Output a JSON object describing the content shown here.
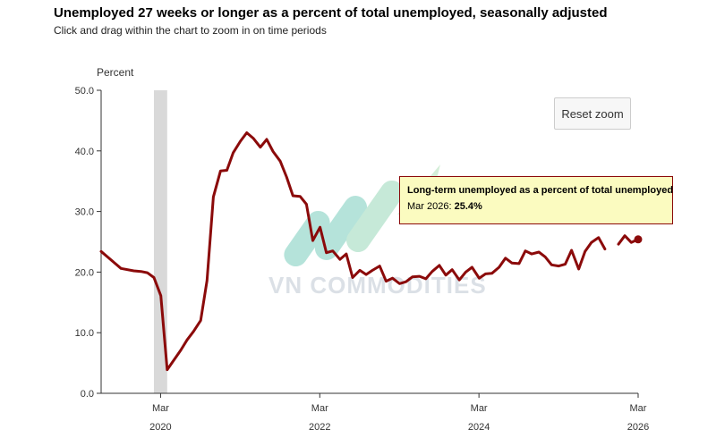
{
  "header": {
    "title": "Unemployed 27 weeks or longer as a percent of total unemployed, seasonally adjusted",
    "subtitle": "Click and drag within the chart to zoom in on time periods"
  },
  "controls": {
    "reset_zoom_label": "Reset zoom"
  },
  "tooltip": {
    "title": "Long-term unemployed as a percent of total unemployed",
    "period": "Mar 2026",
    "value": "25.4%"
  },
  "watermark": {
    "text": "VN COMMODITIES"
  },
  "colors": {
    "line": "#8b0a0a",
    "recession_band": "#d9d9d9",
    "axis": "#333333",
    "tooltip_bg": "#fbfbc0"
  },
  "chart_data": {
    "type": "line",
    "title": "Unemployed 27 weeks or longer as a percent of total unemployed, seasonally adjusted",
    "ylabel": "Percent",
    "xlabel": "",
    "ylim": [
      0,
      50
    ],
    "yticks": [
      "0.0",
      "10.0",
      "20.0",
      "30.0",
      "40.0",
      "50.0"
    ],
    "xticks": [
      {
        "month": "Mar",
        "year": "2020",
        "t": 2020.167
      },
      {
        "month": "Mar",
        "year": "2022",
        "t": 2022.167
      },
      {
        "month": "Mar",
        "year": "2024",
        "t": 2024.167
      },
      {
        "month": "Mar",
        "year": "2026",
        "t": 2026.167
      }
    ],
    "xlim": [
      2019.42,
      2026.167
    ],
    "grid": false,
    "recession": {
      "start": 2020.083,
      "end": 2020.25
    },
    "series": [
      {
        "segments": [
          [
            [
              2019.42,
              23.4
            ],
            [
              2019.5,
              22.5
            ],
            [
              2019.67,
              20.6
            ],
            [
              2019.83,
              20.2
            ],
            [
              2019.92,
              20.1
            ],
            [
              2020.0,
              19.9
            ],
            [
              2020.083,
              19.1
            ],
            [
              2020.17,
              16.1
            ],
            [
              2020.25,
              3.9
            ],
            [
              2020.33,
              5.4
            ],
            [
              2020.42,
              7.1
            ],
            [
              2020.5,
              8.8
            ],
            [
              2020.58,
              10.2
            ],
            [
              2020.67,
              12.0
            ],
            [
              2020.75,
              18.6
            ],
            [
              2020.83,
              32.4
            ],
            [
              2020.92,
              36.7
            ],
            [
              2021.0,
              36.8
            ],
            [
              2021.08,
              39.7
            ],
            [
              2021.17,
              41.6
            ],
            [
              2021.25,
              43.0
            ],
            [
              2021.33,
              42.1
            ],
            [
              2021.42,
              40.6
            ],
            [
              2021.5,
              41.9
            ],
            [
              2021.58,
              39.9
            ],
            [
              2021.67,
              38.3
            ],
            [
              2021.75,
              35.7
            ],
            [
              2021.83,
              32.6
            ],
            [
              2021.92,
              32.5
            ],
            [
              2022.0,
              31.2
            ],
            [
              2022.08,
              25.2
            ],
            [
              2022.17,
              27.4
            ],
            [
              2022.25,
              23.2
            ],
            [
              2022.33,
              23.5
            ],
            [
              2022.42,
              22.1
            ],
            [
              2022.5,
              23.0
            ],
            [
              2022.58,
              19.1
            ],
            [
              2022.67,
              20.3
            ],
            [
              2022.75,
              19.6
            ],
            [
              2022.83,
              20.3
            ],
            [
              2022.92,
              21.0
            ],
            [
              2023.0,
              18.5
            ],
            [
              2023.08,
              19.0
            ],
            [
              2023.17,
              18.1
            ],
            [
              2023.25,
              18.4
            ],
            [
              2023.33,
              19.2
            ],
            [
              2023.42,
              19.3
            ],
            [
              2023.5,
              18.9
            ],
            [
              2023.58,
              20.1
            ],
            [
              2023.67,
              21.1
            ],
            [
              2023.75,
              19.5
            ],
            [
              2023.83,
              20.4
            ],
            [
              2023.92,
              18.7
            ],
            [
              2024.0,
              20.0
            ],
            [
              2024.08,
              20.8
            ],
            [
              2024.17,
              19.0
            ],
            [
              2024.25,
              19.7
            ],
            [
              2024.33,
              19.8
            ],
            [
              2024.42,
              20.8
            ],
            [
              2024.5,
              22.3
            ],
            [
              2024.58,
              21.5
            ],
            [
              2024.67,
              21.4
            ],
            [
              2024.75,
              23.5
            ],
            [
              2024.83,
              23.0
            ],
            [
              2024.92,
              23.3
            ],
            [
              2025.0,
              22.5
            ],
            [
              2025.08,
              21.2
            ],
            [
              2025.17,
              21.0
            ],
            [
              2025.25,
              21.3
            ],
            [
              2025.33,
              23.6
            ],
            [
              2025.42,
              20.5
            ],
            [
              2025.5,
              23.4
            ],
            [
              2025.58,
              24.9
            ],
            [
              2025.67,
              25.7
            ],
            [
              2025.75,
              23.8
            ]
          ],
          [
            [
              2025.92,
              24.6
            ],
            [
              2026.0,
              26.0
            ],
            [
              2026.08,
              24.9
            ],
            [
              2026.167,
              25.4
            ]
          ]
        ],
        "highlight": {
          "t": 2026.167,
          "y": 25.4
        }
      }
    ]
  }
}
